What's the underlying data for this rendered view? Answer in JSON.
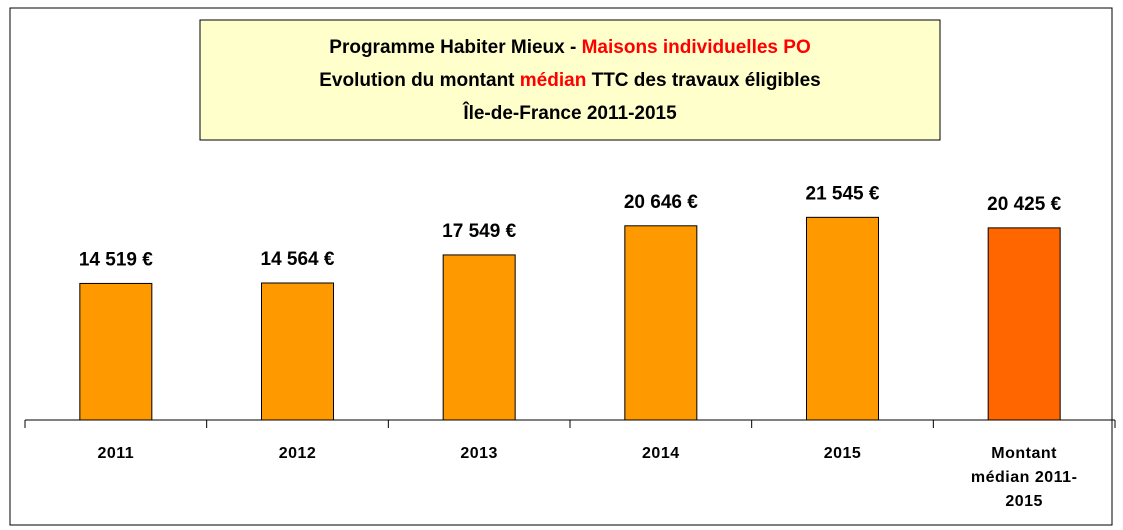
{
  "chart_data": {
    "type": "bar",
    "title": [
      [
        {
          "text": "Programme Habiter Mieux - ",
          "color": "#000000"
        },
        {
          "text": "Maisons individuelles PO",
          "color": "#ff0000"
        }
      ],
      [
        {
          "text": "Evolution du montant ",
          "color": "#000000"
        },
        {
          "text": "médian",
          "color": "#ff0000"
        },
        {
          "text": " TTC des travaux éligibles",
          "color": "#000000"
        }
      ],
      [
        {
          "text": "Île-de-France 2011-2015",
          "color": "#000000"
        }
      ]
    ],
    "categories": [
      "2011",
      "2012",
      "2013",
      "2014",
      "2015",
      "Montant médian 2011-2015"
    ],
    "values": [
      14519,
      14564,
      17549,
      20646,
      21545,
      20425
    ],
    "value_labels": [
      "14 519 €",
      "14 564 €",
      "17 549 €",
      "20 646 €",
      "21 545 €",
      "20 425 €"
    ],
    "colors": [
      "#ff9900",
      "#ff9900",
      "#ff9900",
      "#ff9900",
      "#ff9900",
      "#ff6600"
    ],
    "ylim": [
      0,
      32000
    ]
  }
}
